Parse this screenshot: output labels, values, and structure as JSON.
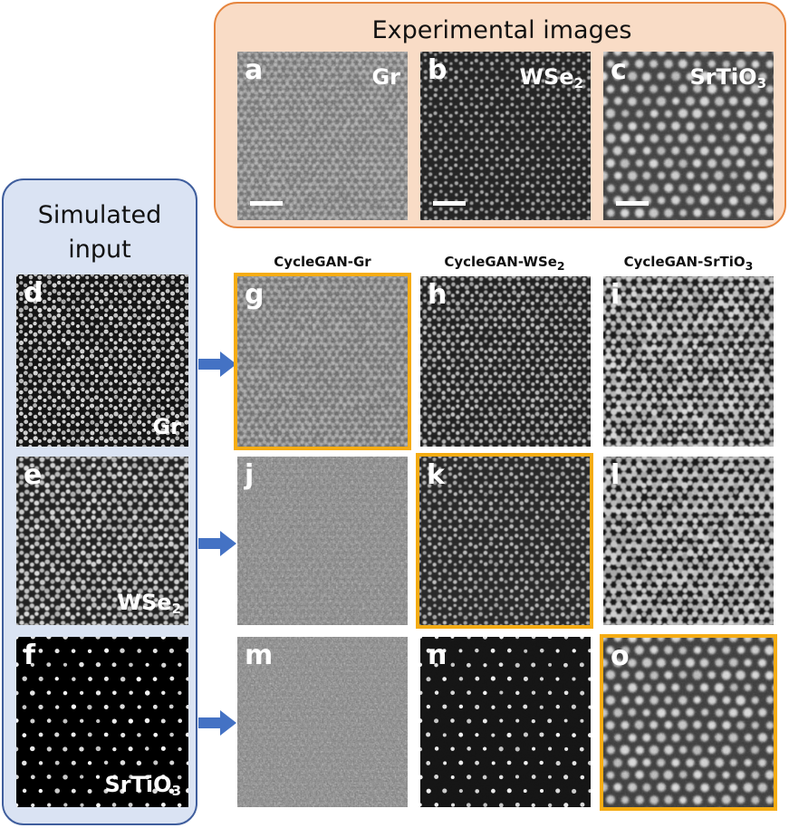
{
  "experimental": {
    "title": "Experimental images",
    "panels": [
      {
        "label": "a",
        "material": "Gr",
        "material_sub": ""
      },
      {
        "label": "b",
        "material": "WSe",
        "material_sub": "2"
      },
      {
        "label": "c",
        "material": "SrTiO",
        "material_sub": "3"
      }
    ]
  },
  "simulated": {
    "title_line1": "Simulated",
    "title_line2": "input",
    "panels": [
      {
        "label": "d",
        "material": "Gr",
        "material_sub": ""
      },
      {
        "label": "e",
        "material": "WSe",
        "material_sub": "2"
      },
      {
        "label": "f",
        "material": "SrTiO",
        "material_sub": "3"
      }
    ]
  },
  "columns": [
    {
      "name": "CycleGAN-Gr",
      "sub": ""
    },
    {
      "name": "CycleGAN-WSe",
      "sub": "2"
    },
    {
      "name": "CycleGAN-SrTiO",
      "sub": "3"
    }
  ],
  "grid": {
    "row_gr": [
      "g",
      "h",
      "i"
    ],
    "row_wse2": [
      "j",
      "k",
      "l"
    ],
    "row_srtio3": [
      "m",
      "n",
      "o"
    ]
  },
  "colors": {
    "experimental_border": "#e6853e",
    "experimental_fill": "#f9dcc6",
    "simulated_border": "#3f5e9d",
    "simulated_fill": "#dae3f3",
    "highlight": "#f5ac13",
    "arrow": "#4472c4"
  }
}
